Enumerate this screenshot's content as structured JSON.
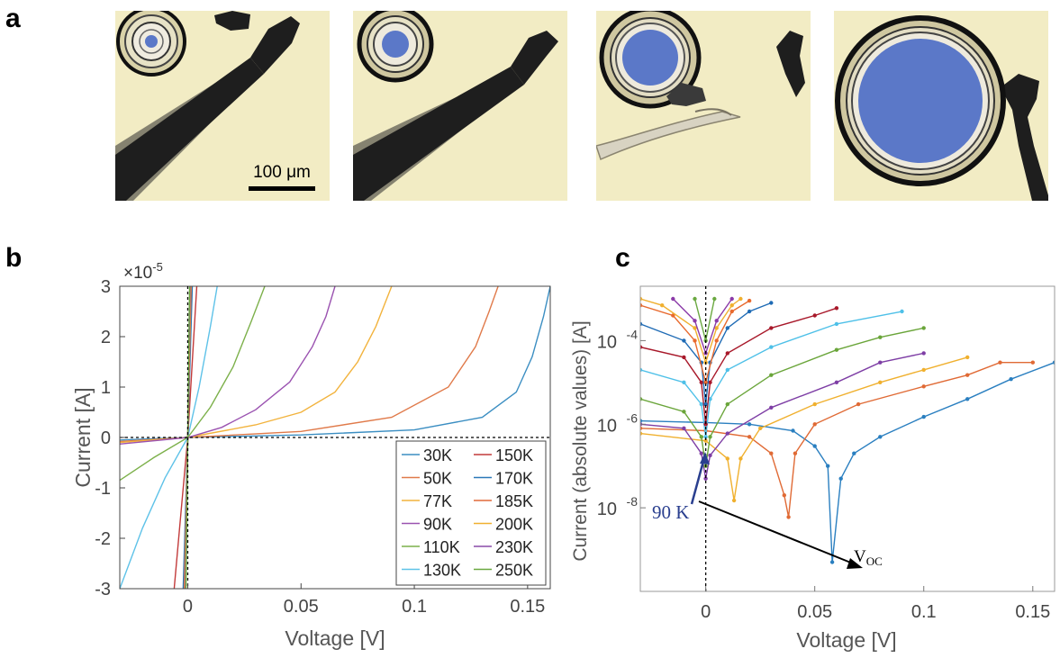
{
  "panel_labels": {
    "a": "a",
    "b": "b",
    "c": "c"
  },
  "scale_bar_label": "100 μm",
  "colors": {
    "photo_bg": "#f2ecc4",
    "disk_blue": "#5b78c8",
    "probe": "#1e1e1e"
  },
  "chart_data": [
    {
      "type": "line",
      "panel": "b",
      "xlabel": "Voltage [V]",
      "ylabel": "Current [A]",
      "y_multiplier": "×10",
      "y_exponent": "-5",
      "xlim": [
        -0.03,
        0.16
      ],
      "ylim": [
        -3,
        3
      ],
      "xticks": [
        0,
        0.05,
        0.1,
        0.15
      ],
      "xtick_labels": [
        "0",
        "0.05",
        "0.1",
        "0.15"
      ],
      "yticks": [
        -3,
        -2,
        -1,
        0,
        1,
        2,
        3
      ],
      "ytick_labels": [
        "-3",
        "-2",
        "-1",
        "0",
        "1",
        "2",
        "3"
      ],
      "grid": false,
      "legend_position": "bottom-right",
      "series": [
        {
          "name": "30K",
          "color": "#3b8ec2",
          "points": [
            [
              -0.03,
              -0.05
            ],
            [
              0,
              0
            ],
            [
              0.05,
              0.05
            ],
            [
              0.1,
              0.15
            ],
            [
              0.13,
              0.4
            ],
            [
              0.145,
              0.9
            ],
            [
              0.152,
              1.6
            ],
            [
              0.157,
              2.4
            ],
            [
              0.16,
              3.0
            ]
          ]
        },
        {
          "name": "50K",
          "color": "#e07a4a",
          "points": [
            [
              -0.03,
              -0.08
            ],
            [
              0,
              0
            ],
            [
              0.05,
              0.12
            ],
            [
              0.09,
              0.4
            ],
            [
              0.115,
              1.0
            ],
            [
              0.127,
              1.8
            ],
            [
              0.133,
              2.5
            ],
            [
              0.137,
              3.0
            ]
          ]
        },
        {
          "name": "77K",
          "color": "#f2b33d",
          "points": [
            [
              -0.03,
              -0.1
            ],
            [
              0,
              0
            ],
            [
              0.03,
              0.25
            ],
            [
              0.05,
              0.5
            ],
            [
              0.065,
              0.9
            ],
            [
              0.075,
              1.5
            ],
            [
              0.083,
              2.2
            ],
            [
              0.09,
              3.0
            ]
          ]
        },
        {
          "name": "90K",
          "color": "#9a52b0",
          "points": [
            [
              -0.03,
              -0.13
            ],
            [
              0,
              0
            ],
            [
              0.015,
              0.2
            ],
            [
              0.03,
              0.55
            ],
            [
              0.045,
              1.1
            ],
            [
              0.055,
              1.8
            ],
            [
              0.061,
              2.4
            ],
            [
              0.065,
              3.0
            ]
          ]
        },
        {
          "name": "110K",
          "color": "#7cb04a",
          "points": [
            [
              -0.03,
              -0.85
            ],
            [
              -0.015,
              -0.4
            ],
            [
              0,
              0
            ],
            [
              0.01,
              0.6
            ],
            [
              0.02,
              1.4
            ],
            [
              0.028,
              2.3
            ],
            [
              0.034,
              3.0
            ]
          ]
        },
        {
          "name": "130K",
          "color": "#5ec2e8",
          "points": [
            [
              -0.03,
              -3.0
            ],
            [
              -0.02,
              -1.8
            ],
            [
              -0.01,
              -0.8
            ],
            [
              0,
              0
            ],
            [
              0.005,
              1.0
            ],
            [
              0.01,
              2.2
            ],
            [
              0.013,
              3.0
            ]
          ]
        },
        {
          "name": "150K",
          "color": "#c23a3a",
          "points": [
            [
              -0.006,
              -3.0
            ],
            [
              -0.003,
              -1.5
            ],
            [
              0,
              0
            ],
            [
              0.002,
              1.5
            ],
            [
              0.004,
              3.0
            ]
          ]
        },
        {
          "name": "170K",
          "color": "#2a78b8",
          "points": [
            [
              -0.002,
              -3.0
            ],
            [
              0,
              0
            ],
            [
              0.002,
              3.0
            ]
          ]
        },
        {
          "name": "185K",
          "color": "#e06a3a",
          "points": [
            [
              -0.0015,
              -3.0
            ],
            [
              0,
              0
            ],
            [
              0.0015,
              3.0
            ]
          ]
        },
        {
          "name": "200K",
          "color": "#f0b030",
          "points": [
            [
              -0.0012,
              -3.0
            ],
            [
              0,
              0
            ],
            [
              0.0012,
              3.0
            ]
          ]
        },
        {
          "name": "230K",
          "color": "#8a4aa8",
          "points": [
            [
              -0.001,
              -3.0
            ],
            [
              0,
              0
            ],
            [
              0.001,
              3.0
            ]
          ]
        },
        {
          "name": "250K",
          "color": "#6aa840",
          "points": [
            [
              -0.0008,
              -3.0
            ],
            [
              0,
              0
            ],
            [
              0.0008,
              3.0
            ]
          ]
        }
      ]
    },
    {
      "type": "line",
      "panel": "c",
      "scale": "log",
      "xlabel": "Voltage [V]",
      "ylabel": "Current (absolute values) [A]",
      "xlim": [
        -0.03,
        0.16
      ],
      "ylim": [
        1e-10,
        0.002
      ],
      "xticks": [
        0,
        0.05,
        0.1,
        0.15
      ],
      "xtick_labels": [
        "0",
        "0.05",
        "0.1",
        "0.15"
      ],
      "yticks": [
        1e-08,
        1e-06,
        0.0001
      ],
      "ytick_labels": [
        "10",
        "10",
        "10"
      ],
      "ytick_exponents": [
        "-8",
        "-6",
        "-4"
      ],
      "grid": false,
      "annotations": [
        {
          "text": "90 K",
          "color": "#2a3f8f"
        },
        {
          "text": "V",
          "subscript": "OC"
        }
      ],
      "series": [
        {
          "name": "30K",
          "color": "#2a7fc0",
          "points": [
            [
              -0.03,
              1.2e-06
            ],
            [
              0,
              1.1e-06
            ],
            [
              0.02,
              1e-06
            ],
            [
              0.04,
              7e-07
            ],
            [
              0.05,
              3e-07
            ],
            [
              0.056,
              1e-07
            ],
            [
              0.058,
              5e-10
            ],
            [
              0.062,
              5e-08
            ],
            [
              0.068,
              2e-07
            ],
            [
              0.08,
              5e-07
            ],
            [
              0.1,
              1.5e-06
            ],
            [
              0.12,
              4e-06
            ],
            [
              0.14,
              1.2e-05
            ],
            [
              0.16,
              3e-05
            ]
          ]
        },
        {
          "name": "50K",
          "color": "#e06a35",
          "points": [
            [
              -0.03,
              8e-07
            ],
            [
              0,
              7e-07
            ],
            [
              0.02,
              5e-07
            ],
            [
              0.03,
              2e-07
            ],
            [
              0.036,
              2e-08
            ],
            [
              0.038,
              6e-09
            ],
            [
              0.041,
              2e-07
            ],
            [
              0.05,
              1e-06
            ],
            [
              0.07,
              3e-06
            ],
            [
              0.1,
              8e-06
            ],
            [
              0.12,
              1.5e-05
            ],
            [
              0.135,
              3e-05
            ],
            [
              0.15,
              3e-05
            ]
          ]
        },
        {
          "name": "77K",
          "color": "#f0b02e",
          "points": [
            [
              -0.03,
              6e-07
            ],
            [
              0,
              4e-07
            ],
            [
              0.01,
              1.5e-07
            ],
            [
              0.013,
              1.5e-08
            ],
            [
              0.016,
              1.5e-07
            ],
            [
              0.025,
              8e-07
            ],
            [
              0.05,
              3e-06
            ],
            [
              0.08,
              1e-05
            ],
            [
              0.1,
              2e-05
            ],
            [
              0.12,
              4e-05
            ]
          ]
        },
        {
          "name": "90K",
          "color": "#7e3ea5",
          "points": [
            [
              -0.03,
              1e-06
            ],
            [
              -0.01,
              8e-07
            ],
            [
              -0.002,
              2e-07
            ],
            [
              0,
              5e-08
            ],
            [
              0.002,
              1.8e-07
            ],
            [
              0.01,
              6e-07
            ],
            [
              0.03,
              2.5e-06
            ],
            [
              0.06,
              1e-05
            ],
            [
              0.08,
              3e-05
            ],
            [
              0.1,
              5e-05
            ]
          ]
        },
        {
          "name": "110K",
          "color": "#6aa53a",
          "points": [
            [
              -0.03,
              4e-06
            ],
            [
              -0.01,
              2e-06
            ],
            [
              -0.002,
              5e-07
            ],
            [
              0,
              1e-07
            ],
            [
              0.002,
              5e-07
            ],
            [
              0.01,
              3e-06
            ],
            [
              0.03,
              1.5e-05
            ],
            [
              0.06,
              6e-05
            ],
            [
              0.08,
              0.00012
            ],
            [
              0.1,
              0.0002
            ]
          ]
        },
        {
          "name": "130K",
          "color": "#4ec0e8",
          "points": [
            [
              -0.03,
              2e-05
            ],
            [
              -0.01,
              1e-05
            ],
            [
              -0.002,
              3e-06
            ],
            [
              0,
              5e-07
            ],
            [
              0.002,
              4e-06
            ],
            [
              0.01,
              2e-05
            ],
            [
              0.03,
              7e-05
            ],
            [
              0.06,
              0.00025
            ],
            [
              0.09,
              0.0005
            ]
          ]
        },
        {
          "name": "150K",
          "color": "#a8182a",
          "points": [
            [
              -0.03,
              7e-05
            ],
            [
              -0.01,
              4e-05
            ],
            [
              -0.002,
              1e-05
            ],
            [
              0,
              1e-06
            ],
            [
              0.002,
              1e-05
            ],
            [
              0.01,
              5e-05
            ],
            [
              0.03,
              0.0002
            ],
            [
              0.05,
              0.0004
            ],
            [
              0.06,
              0.0006
            ]
          ]
        },
        {
          "name": "170K",
          "color": "#1f6bb5",
          "points": [
            [
              -0.03,
              0.00025
            ],
            [
              -0.01,
              0.0001
            ],
            [
              -0.002,
              3e-05
            ],
            [
              0,
              3e-06
            ],
            [
              0.002,
              3e-05
            ],
            [
              0.01,
              0.0002
            ],
            [
              0.02,
              0.0005
            ],
            [
              0.03,
              0.0008
            ]
          ]
        },
        {
          "name": "185K",
          "color": "#e86a2e",
          "points": [
            [
              -0.03,
              0.0007
            ],
            [
              -0.015,
              0.0004
            ],
            [
              -0.005,
              0.0001
            ],
            [
              0,
              1e-05
            ],
            [
              0.005,
              0.0001
            ],
            [
              0.012,
              0.0005
            ],
            [
              0.02,
              0.0009
            ]
          ]
        },
        {
          "name": "200K",
          "color": "#f0b030",
          "points": [
            [
              -0.03,
              0.001
            ],
            [
              -0.02,
              0.0007
            ],
            [
              -0.005,
              0.0002
            ],
            [
              0,
              3e-05
            ],
            [
              0.005,
              0.0002
            ],
            [
              0.012,
              0.0007
            ],
            [
              0.016,
              0.001
            ]
          ]
        },
        {
          "name": "230K",
          "color": "#8b3aa8",
          "points": [
            [
              -0.015,
              0.001
            ],
            [
              -0.005,
              0.0003
            ],
            [
              0,
              5e-05
            ],
            [
              0.005,
              0.0003
            ],
            [
              0.012,
              0.001
            ]
          ]
        },
        {
          "name": "250K",
          "color": "#6aa840",
          "points": [
            [
              -0.005,
              0.001
            ],
            [
              0,
              0.0001
            ],
            [
              0.004,
              0.001
            ]
          ]
        }
      ]
    }
  ]
}
